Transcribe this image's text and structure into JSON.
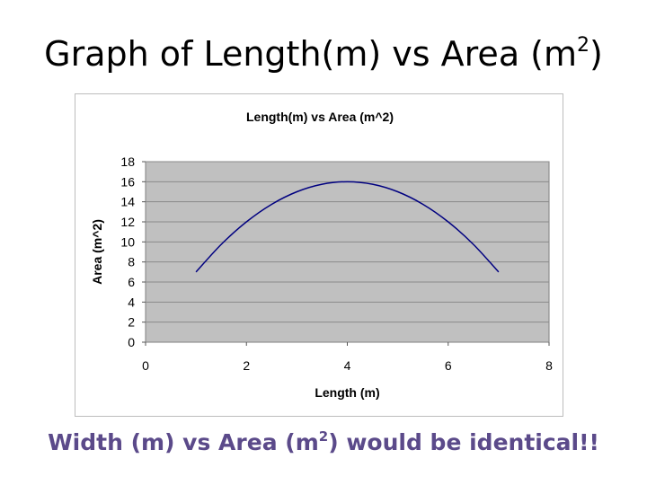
{
  "slide": {
    "title_main": "Graph of Length(m) vs Area (m",
    "title_sup": "2",
    "title_end": ")",
    "caption_main": "Width (m) vs Area (m",
    "caption_sup": "2",
    "caption_end": ") would be identical!!"
  },
  "chart_data": {
    "type": "line",
    "title": "Length(m) vs Area (m^2)",
    "xlabel": "Length (m)",
    "ylabel": "Area (m^2)",
    "xlim": [
      0,
      8
    ],
    "ylim": [
      0,
      18
    ],
    "xticks": [
      0,
      2,
      4,
      6,
      8
    ],
    "yticks": [
      0,
      2,
      4,
      6,
      8,
      10,
      12,
      14,
      16,
      18
    ],
    "grid": true,
    "legend": "none",
    "series": [
      {
        "x": [
          1,
          1.5,
          2,
          2.5,
          3,
          3.5,
          4,
          4.5,
          5,
          5.5,
          6,
          6.5,
          7
        ],
        "values": [
          7,
          9.75,
          12,
          13.75,
          15,
          15.75,
          16,
          15.75,
          15,
          13.75,
          12,
          9.75,
          7
        ],
        "color": "#000080"
      }
    ],
    "colors": {
      "plot_bg": "#c0c0c0",
      "gridline": "#8a8a8a",
      "text": "#000000"
    }
  }
}
